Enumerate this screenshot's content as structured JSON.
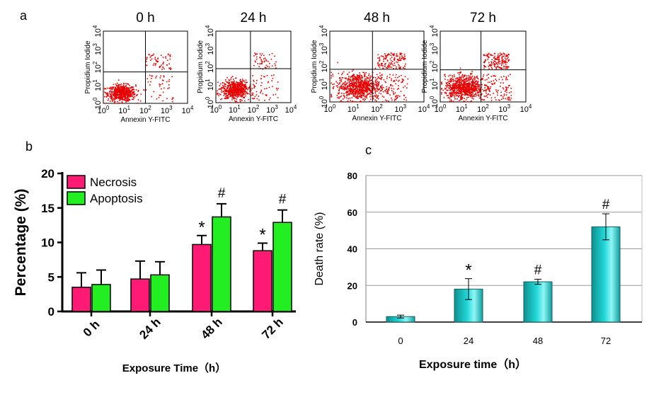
{
  "panel_labels": {
    "a": "a",
    "b": "b",
    "c": "c"
  },
  "chart_data": [
    {
      "type": "scatter",
      "panel": "a",
      "facets": [
        "0 h",
        "24 h",
        "48 h",
        "72 h"
      ],
      "xlabel": "Annexin Y-FITC",
      "ylabel": "Propidium Iodide",
      "x_scale": "log",
      "y_scale": "log",
      "xlim": [
        1,
        10000
      ],
      "ylim": [
        1,
        10000
      ],
      "x_ticks": [
        {
          "base": "10",
          "exp": "0",
          "value": 1
        },
        {
          "base": "10",
          "exp": "1",
          "value": 10
        },
        {
          "base": "10",
          "exp": "2",
          "value": 100
        },
        {
          "base": "10",
          "exp": "3",
          "value": 1000
        },
        {
          "base": "10",
          "exp": "4",
          "value": 10000
        }
      ],
      "y_ticks": [
        {
          "base": "10",
          "exp": "0",
          "value": 1
        },
        {
          "base": "10",
          "exp": "1",
          "value": 10
        },
        {
          "base": "10",
          "exp": "2",
          "value": 100
        },
        {
          "base": "10",
          "exp": "3",
          "value": 1000
        },
        {
          "base": "10",
          "exp": "4",
          "value": 10000
        }
      ],
      "quadrant_gates": [
        {
          "facet": "0 h",
          "x": 100,
          "y": 55
        },
        {
          "facet": "24 h",
          "x": 70,
          "y": 80
        },
        {
          "facet": "48 h",
          "x": 65,
          "y": 70
        },
        {
          "facet": "72 h",
          "x": 80,
          "y": 65
        }
      ],
      "color": "#e60000"
    },
    {
      "type": "bar",
      "panel": "b",
      "categories": [
        "0 h",
        "24 h",
        "48 h",
        "72 h"
      ],
      "series": [
        {
          "name": "Necrosis",
          "color": "#ff1a75",
          "values": [
            3.5,
            4.7,
            9.7,
            8.8
          ],
          "errors": [
            2.1,
            2.6,
            1.3,
            1.1
          ]
        },
        {
          "name": "Apoptosis",
          "color": "#22ee22",
          "values": [
            3.9,
            5.3,
            13.7,
            12.9
          ],
          "errors": [
            2.1,
            1.9,
            1.9,
            1.8
          ]
        }
      ],
      "annotations": [
        {
          "series": "Necrosis",
          "category": "48 h",
          "text": "*"
        },
        {
          "series": "Apoptosis",
          "category": "48 h",
          "text": "#"
        },
        {
          "series": "Necrosis",
          "category": "72 h",
          "text": "*"
        },
        {
          "series": "Apoptosis",
          "category": "72 h",
          "text": "#"
        }
      ],
      "xlabel": "Exposure Time（h）",
      "ylabel": "Percentage (%)",
      "ylim": [
        0,
        20
      ],
      "yticks": [
        0,
        5,
        10,
        15,
        20
      ],
      "legend": "top-left",
      "grid": false
    },
    {
      "type": "bar",
      "panel": "c",
      "categories": [
        "0",
        "24",
        "48",
        "72"
      ],
      "values": [
        3,
        18,
        22,
        52
      ],
      "errors": [
        0.8,
        5.7,
        1.4,
        7.1
      ],
      "annotations": [
        {
          "category": "24",
          "text": "*"
        },
        {
          "category": "48",
          "text": "#"
        },
        {
          "category": "72",
          "text": "#"
        }
      ],
      "color": "#22d7d7",
      "xlabel": "Exposure time（h）",
      "ylabel": "Death rate (%)",
      "ylim": [
        0,
        80
      ],
      "yticks": [
        0,
        20,
        40,
        60,
        80
      ],
      "grid": true
    }
  ]
}
